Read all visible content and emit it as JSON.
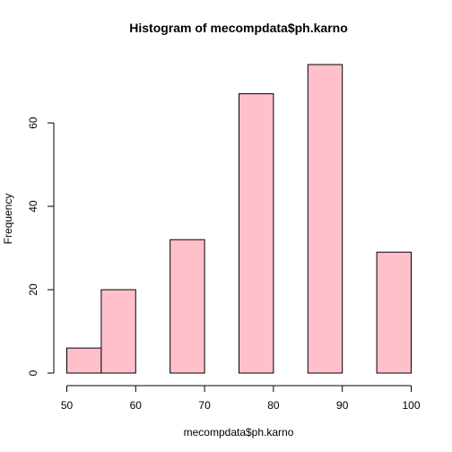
{
  "chart_data": {
    "type": "bar",
    "title": "Histogram of mecompdata$ph.karno",
    "xlabel": "mecompdata$ph.karno",
    "ylabel": "Frequency",
    "bins": [
      {
        "from": 50,
        "to": 55,
        "count": 6
      },
      {
        "from": 55,
        "to": 60,
        "count": 20
      },
      {
        "from": 60,
        "to": 65,
        "count": 0
      },
      {
        "from": 65,
        "to": 70,
        "count": 32
      },
      {
        "from": 70,
        "to": 75,
        "count": 0
      },
      {
        "from": 75,
        "to": 80,
        "count": 67
      },
      {
        "from": 80,
        "to": 85,
        "count": 0
      },
      {
        "from": 85,
        "to": 90,
        "count": 74
      },
      {
        "from": 90,
        "to": 95,
        "count": 0
      },
      {
        "from": 95,
        "to": 100,
        "count": 29
      }
    ],
    "xlim": [
      50,
      100
    ],
    "ylim": [
      0,
      74
    ],
    "xticks": [
      50,
      60,
      70,
      80,
      90,
      100
    ],
    "yticks": [
      0,
      20,
      40,
      60
    ],
    "bar_color": "#FFC0CB",
    "grid": false
  }
}
